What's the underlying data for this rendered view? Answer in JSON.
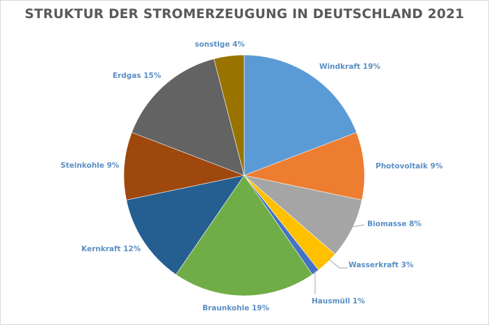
{
  "chart_data": {
    "type": "pie",
    "title": "STRUKTUR DER STROMERZEUGUNG IN DEUTSCHLAND 2021",
    "unit": "%",
    "start": "12 o'clock",
    "direction": "clockwise",
    "slices": [
      {
        "label": "Windkraft",
        "value": 19,
        "display": "Windkraft 19%",
        "color": "#5b9bd5"
      },
      {
        "label": "Photovoltaik",
        "value": 9,
        "display": "Photovoltaik 9%",
        "color": "#ed7d31"
      },
      {
        "label": "Biomasse",
        "value": 8,
        "display": "Biomasse 8%",
        "color": "#a5a5a5"
      },
      {
        "label": "Wasserkraft",
        "value": 3,
        "display": "Wasserkraft 3%",
        "color": "#ffc000"
      },
      {
        "label": "Hausmüll",
        "value": 1,
        "display": "Hausmüll 1%",
        "color": "#4472c4"
      },
      {
        "label": "Braunkohle",
        "value": 19,
        "display": "Braunkohle 19%",
        "color": "#70ad47"
      },
      {
        "label": "Kernkraft",
        "value": 12,
        "display": "Kernkraft 12%",
        "color": "#255e91"
      },
      {
        "label": "Steinkohle",
        "value": 9,
        "display": "Steinkohle 9%",
        "color": "#9e480e"
      },
      {
        "label": "Erdgas",
        "value": 15,
        "display": "Erdgas 15%",
        "color": "#636363"
      },
      {
        "label": "sonstige",
        "value": 4,
        "display": "sonstige 4%",
        "color": "#997300"
      }
    ],
    "label_color": "#5b8fc4",
    "legend": "none (data labels)"
  }
}
